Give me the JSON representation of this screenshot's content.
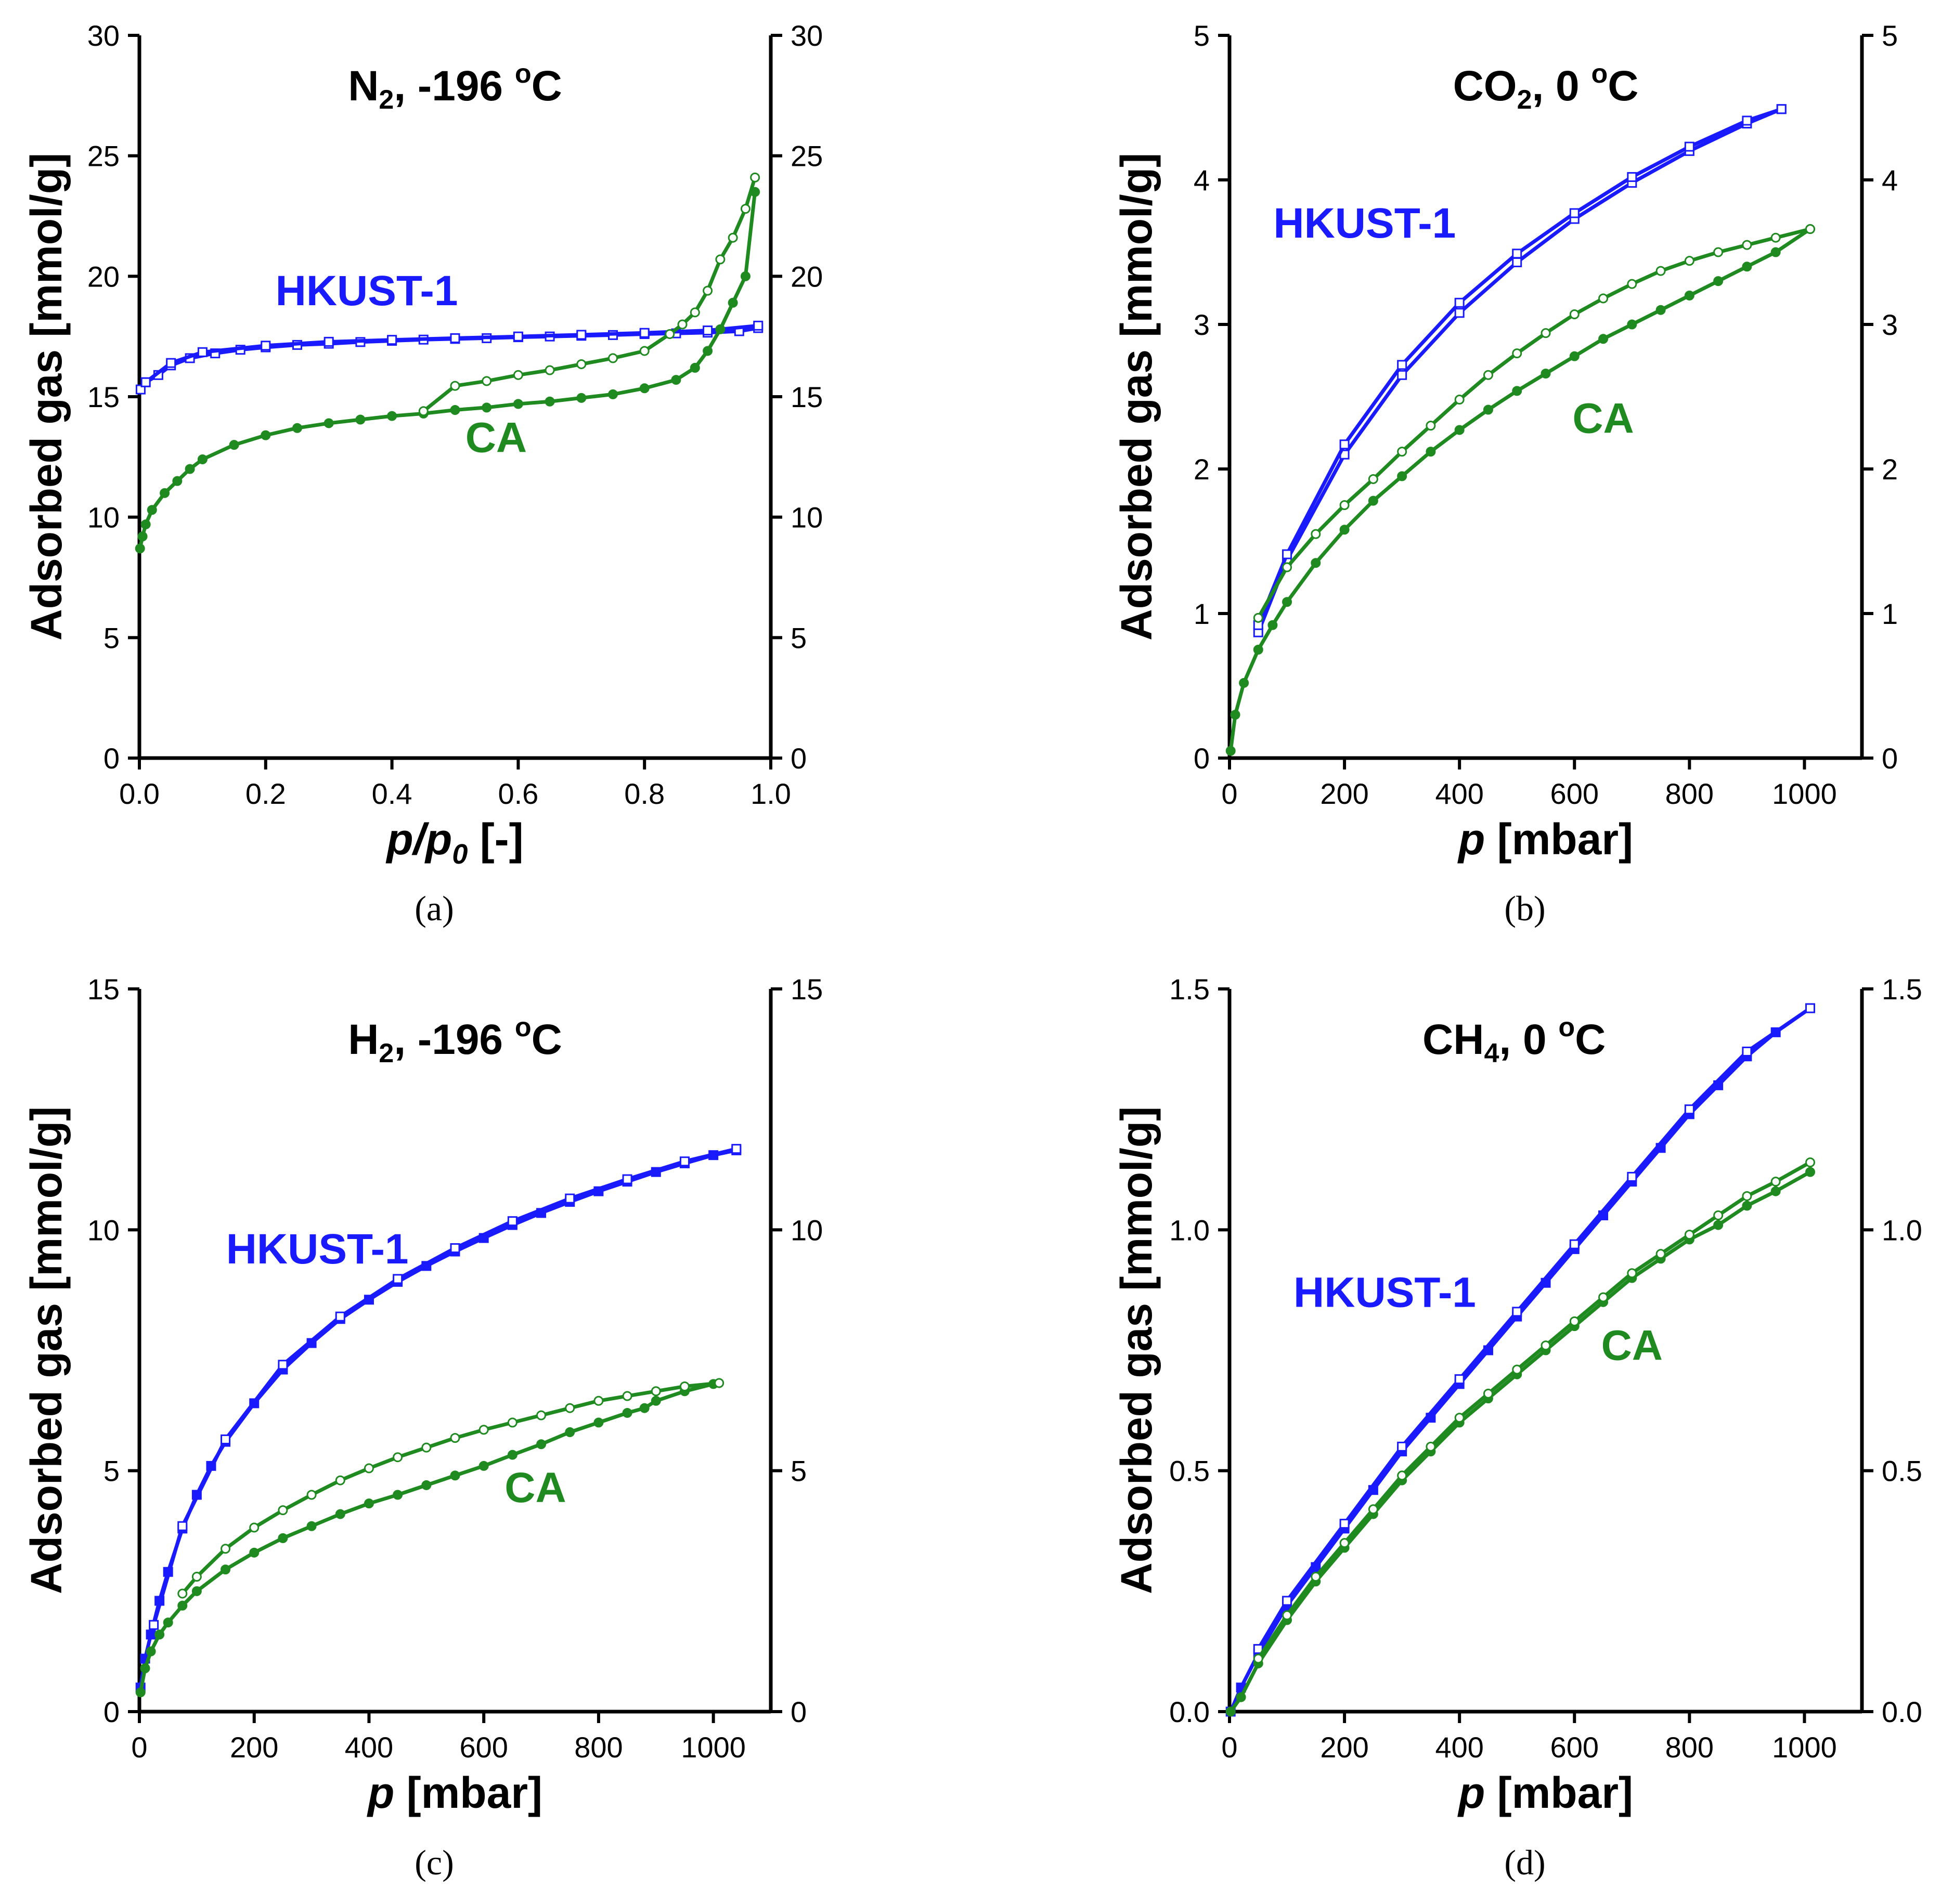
{
  "colors": {
    "hkust": "#1a1aff",
    "ca": "#1f8a1f",
    "axis": "#000000"
  },
  "chart_data": [
    {
      "panel": "a",
      "type": "line",
      "caption": "(a)",
      "title": {
        "main": "N",
        "sub": "2",
        "rest": ", -196 ",
        "sup": "o",
        "end": "C"
      },
      "xlabel": {
        "italic": "p/p",
        "sub": "0",
        "rest": " [-]"
      },
      "ylabel": "Adsorbed gas [mmol/g]",
      "xlim": [
        0,
        1.0
      ],
      "ylim": [
        0,
        30
      ],
      "xticks": [
        "0.0",
        "0.2",
        "0.4",
        "0.6",
        "0.8",
        "1.0"
      ],
      "xtick_values": [
        0,
        0.2,
        0.4,
        0.6,
        0.8,
        1.0
      ],
      "yticks": [
        "0",
        "5",
        "10",
        "15",
        "20",
        "25",
        "30"
      ],
      "ytick_values": [
        0,
        5,
        10,
        15,
        20,
        25,
        30
      ],
      "labels": [
        {
          "text": "HKUST-1",
          "series": "hkust",
          "x": 0.36,
          "y": 18.8
        },
        {
          "text": "CA",
          "series": "ca",
          "x": 0.565,
          "y": 12.7
        }
      ],
      "series": [
        {
          "name": "HKUST-1 adsorption",
          "color_key": "hkust",
          "marker": "square",
          "x": [
            0.002,
            0.01,
            0.03,
            0.05,
            0.08,
            0.12,
            0.16,
            0.2,
            0.25,
            0.3,
            0.35,
            0.4,
            0.45,
            0.5,
            0.55,
            0.6,
            0.65,
            0.7,
            0.75,
            0.8,
            0.85,
            0.9,
            0.95,
            0.98
          ],
          "y": [
            15.3,
            15.6,
            15.9,
            16.3,
            16.6,
            16.8,
            16.95,
            17.05,
            17.15,
            17.2,
            17.27,
            17.32,
            17.37,
            17.4,
            17.43,
            17.47,
            17.5,
            17.53,
            17.56,
            17.6,
            17.63,
            17.66,
            17.72,
            17.85
          ]
        },
        {
          "name": "HKUST-1 desorption",
          "color_key": "hkust",
          "marker": "square",
          "x": [
            0.98,
            0.9,
            0.8,
            0.7,
            0.6,
            0.5,
            0.4,
            0.3,
            0.2,
            0.1,
            0.05,
            0.01
          ],
          "y": [
            17.95,
            17.75,
            17.65,
            17.57,
            17.5,
            17.43,
            17.36,
            17.28,
            17.12,
            16.85,
            16.4,
            15.6
          ]
        },
        {
          "name": "CA adsorption",
          "color_key": "ca",
          "marker": "filled-circle",
          "x": [
            0.001,
            0.005,
            0.01,
            0.02,
            0.04,
            0.06,
            0.08,
            0.1,
            0.15,
            0.2,
            0.25,
            0.3,
            0.35,
            0.4,
            0.45,
            0.5,
            0.55,
            0.6,
            0.65,
            0.7,
            0.75,
            0.8,
            0.85,
            0.88,
            0.9,
            0.92,
            0.94,
            0.96,
            0.975
          ],
          "y": [
            8.7,
            9.2,
            9.7,
            10.3,
            11.0,
            11.5,
            12.0,
            12.4,
            13.0,
            13.4,
            13.7,
            13.9,
            14.05,
            14.2,
            14.3,
            14.45,
            14.55,
            14.7,
            14.8,
            14.95,
            15.1,
            15.35,
            15.7,
            16.2,
            16.9,
            17.8,
            18.9,
            20.0,
            23.5
          ]
        },
        {
          "name": "CA desorption",
          "color_key": "ca",
          "marker": "open-circle",
          "x": [
            0.975,
            0.96,
            0.94,
            0.92,
            0.9,
            0.88,
            0.86,
            0.84,
            0.8,
            0.75,
            0.7,
            0.65,
            0.6,
            0.55,
            0.5,
            0.45
          ],
          "y": [
            24.1,
            22.8,
            21.6,
            20.7,
            19.4,
            18.5,
            18.0,
            17.6,
            16.9,
            16.6,
            16.35,
            16.1,
            15.9,
            15.65,
            15.45,
            14.4
          ]
        }
      ]
    },
    {
      "panel": "b",
      "type": "line",
      "caption": "(b)",
      "title": {
        "main": "CO",
        "sub": "2",
        "rest": ", 0 ",
        "sup": "o",
        "end": "C"
      },
      "xlabel": {
        "italic": "p",
        "sub": "",
        "rest": " [mbar]"
      },
      "ylabel": "Adsorbed gas [mmol/g]",
      "xlim": [
        0,
        1100
      ],
      "ylim": [
        0,
        5
      ],
      "xticks": [
        "0",
        "200",
        "400",
        "600",
        "800",
        "1000"
      ],
      "xtick_values": [
        0,
        200,
        400,
        600,
        800,
        1000
      ],
      "yticks": [
        "0",
        "1",
        "2",
        "3",
        "4",
        "5"
      ],
      "ytick_values": [
        0,
        1,
        2,
        3,
        4,
        5
      ],
      "labels": [
        {
          "text": "HKUST-1",
          "series": "hkust",
          "x": 235,
          "y": 3.6
        },
        {
          "text": "CA",
          "series": "ca",
          "x": 650,
          "y": 2.25
        }
      ],
      "series": [
        {
          "name": "HKUST-1 adsorption",
          "color_key": "hkust",
          "marker": "square",
          "x": [
            50,
            100,
            200,
            300,
            400,
            500,
            600,
            700,
            800,
            900,
            960
          ],
          "y": [
            0.87,
            1.37,
            2.1,
            2.65,
            3.08,
            3.43,
            3.73,
            3.98,
            4.2,
            4.39,
            4.49
          ]
        },
        {
          "name": "HKUST-1 desorption",
          "color_key": "hkust",
          "marker": "square",
          "x": [
            960,
            900,
            800,
            700,
            600,
            500,
            400,
            300,
            200,
            100,
            50
          ],
          "y": [
            4.49,
            4.41,
            4.23,
            4.02,
            3.77,
            3.49,
            3.15,
            2.72,
            2.17,
            1.41,
            0.92
          ]
        },
        {
          "name": "CA adsorption",
          "color_key": "ca",
          "marker": "filled-circle",
          "x": [
            2,
            10,
            25,
            50,
            75,
            100,
            150,
            200,
            250,
            300,
            350,
            400,
            450,
            500,
            550,
            600,
            650,
            700,
            750,
            800,
            850,
            900,
            950,
            1010
          ],
          "y": [
            0.05,
            0.3,
            0.52,
            0.75,
            0.92,
            1.08,
            1.35,
            1.58,
            1.78,
            1.95,
            2.12,
            2.27,
            2.41,
            2.54,
            2.66,
            2.78,
            2.9,
            3.0,
            3.1,
            3.2,
            3.3,
            3.4,
            3.5,
            3.66
          ]
        },
        {
          "name": "CA desorption",
          "color_key": "ca",
          "marker": "open-circle",
          "x": [
            1010,
            950,
            900,
            850,
            800,
            750,
            700,
            650,
            600,
            550,
            500,
            450,
            400,
            350,
            300,
            250,
            200,
            150,
            100,
            50
          ],
          "y": [
            3.66,
            3.6,
            3.55,
            3.5,
            3.44,
            3.37,
            3.28,
            3.18,
            3.07,
            2.94,
            2.8,
            2.65,
            2.48,
            2.3,
            2.12,
            1.93,
            1.75,
            1.55,
            1.32,
            0.97
          ]
        }
      ]
    },
    {
      "panel": "c",
      "type": "line",
      "caption": "(c)",
      "title": {
        "main": "H",
        "sub": "2",
        "rest": ", -196 ",
        "sup": "o",
        "end": "C"
      },
      "xlabel": {
        "italic": "p",
        "sub": "",
        "rest": " [mbar]"
      },
      "ylabel": "Adsorbed gas [mmol/g]",
      "xlim": [
        0,
        1100
      ],
      "ylim": [
        0,
        15
      ],
      "xticks": [
        "0",
        "200",
        "400",
        "600",
        "800",
        "1000"
      ],
      "xtick_values": [
        0,
        200,
        400,
        600,
        800,
        1000
      ],
      "yticks": [
        "0",
        "5",
        "10",
        "15"
      ],
      "ytick_values": [
        0,
        5,
        10,
        15
      ],
      "labels": [
        {
          "text": "HKUST-1",
          "series": "hkust",
          "x": 310,
          "y": 9.3
        },
        {
          "text": "CA",
          "series": "ca",
          "x": 690,
          "y": 4.35
        }
      ],
      "series": [
        {
          "name": "HKUST-1 adsorption",
          "color_key": "hkust",
          "marker": "filled-square",
          "x": [
            2,
            10,
            20,
            35,
            50,
            75,
            100,
            125,
            150,
            200,
            250,
            300,
            350,
            400,
            450,
            500,
            550,
            600,
            650,
            700,
            750,
            800,
            850,
            900,
            950,
            1000,
            1040
          ],
          "y": [
            0.5,
            1.1,
            1.6,
            2.3,
            2.9,
            3.8,
            4.5,
            5.1,
            5.6,
            6.4,
            7.1,
            7.65,
            8.15,
            8.55,
            8.92,
            9.25,
            9.55,
            9.83,
            10.1,
            10.35,
            10.58,
            10.8,
            11.0,
            11.2,
            11.38,
            11.55,
            11.65
          ]
        },
        {
          "name": "HKUST-1 desorption",
          "color_key": "hkust",
          "marker": "open-square",
          "x": [
            1040,
            950,
            850,
            750,
            650,
            550,
            450,
            350,
            250,
            150,
            75,
            25
          ],
          "y": [
            11.68,
            11.42,
            11.05,
            10.65,
            10.18,
            9.62,
            8.98,
            8.2,
            7.2,
            5.65,
            3.85,
            1.8
          ]
        },
        {
          "name": "CA adsorption",
          "color_key": "ca",
          "marker": "filled-circle",
          "x": [
            2,
            10,
            20,
            35,
            50,
            75,
            100,
            150,
            200,
            250,
            300,
            350,
            400,
            450,
            500,
            550,
            600,
            650,
            700,
            750,
            800,
            850,
            880,
            900,
            950,
            1000
          ],
          "y": [
            0.4,
            0.9,
            1.25,
            1.6,
            1.85,
            2.2,
            2.5,
            2.95,
            3.3,
            3.6,
            3.85,
            4.1,
            4.32,
            4.5,
            4.7,
            4.9,
            5.1,
            5.33,
            5.55,
            5.8,
            6.0,
            6.2,
            6.3,
            6.45,
            6.65,
            6.8
          ]
        },
        {
          "name": "CA desorption",
          "color_key": "ca",
          "marker": "open-circle",
          "x": [
            1010,
            950,
            900,
            850,
            800,
            750,
            700,
            650,
            600,
            550,
            500,
            450,
            400,
            350,
            300,
            250,
            200,
            150,
            100,
            75
          ],
          "y": [
            6.82,
            6.75,
            6.65,
            6.55,
            6.45,
            6.3,
            6.15,
            6.0,
            5.85,
            5.68,
            5.48,
            5.28,
            5.05,
            4.8,
            4.5,
            4.18,
            3.82,
            3.38,
            2.8,
            2.45
          ]
        }
      ]
    },
    {
      "panel": "d",
      "type": "line",
      "caption": "(d)",
      "title": {
        "main": "CH",
        "sub": "4",
        "rest": ", 0 ",
        "sup": "o",
        "end": "C"
      },
      "xlabel": {
        "italic": "p",
        "sub": "",
        "rest": " [mbar]"
      },
      "ylabel": "Adsorbed gas [mmol/g]",
      "xlim": [
        0,
        1100
      ],
      "ylim": [
        0,
        1.5
      ],
      "xticks": [
        "0",
        "200",
        "400",
        "600",
        "800",
        "1000"
      ],
      "xtick_values": [
        0,
        200,
        400,
        600,
        800,
        1000
      ],
      "yticks": [
        "0.0",
        "0.5",
        "1.0",
        "1.5"
      ],
      "ytick_values": [
        0,
        0.5,
        1.0,
        1.5
      ],
      "labels": [
        {
          "text": "HKUST-1",
          "series": "hkust",
          "x": 270,
          "y": 0.84
        },
        {
          "text": "CA",
          "series": "ca",
          "x": 700,
          "y": 0.73
        }
      ],
      "series": [
        {
          "name": "HKUST-1 adsorption",
          "color_key": "hkust",
          "marker": "filled-square",
          "x": [
            2,
            20,
            50,
            100,
            150,
            200,
            250,
            300,
            350,
            400,
            450,
            500,
            550,
            600,
            650,
            700,
            750,
            800,
            850,
            900,
            950,
            1010
          ],
          "y": [
            0.0,
            0.05,
            0.12,
            0.22,
            0.3,
            0.38,
            0.46,
            0.54,
            0.61,
            0.68,
            0.75,
            0.82,
            0.89,
            0.96,
            1.03,
            1.1,
            1.17,
            1.24,
            1.3,
            1.36,
            1.41,
            1.46
          ]
        },
        {
          "name": "HKUST-1 desorption",
          "color_key": "hkust",
          "marker": "open-square",
          "x": [
            1010,
            900,
            800,
            700,
            600,
            500,
            400,
            300,
            200,
            100,
            50
          ],
          "y": [
            1.46,
            1.37,
            1.25,
            1.11,
            0.97,
            0.83,
            0.69,
            0.55,
            0.39,
            0.23,
            0.13
          ]
        },
        {
          "name": "CA adsorption",
          "color_key": "ca",
          "marker": "filled-circle",
          "x": [
            2,
            20,
            50,
            100,
            150,
            200,
            250,
            300,
            350,
            400,
            450,
            500,
            550,
            600,
            650,
            700,
            750,
            800,
            850,
            900,
            950,
            1010
          ],
          "y": [
            0.0,
            0.03,
            0.1,
            0.19,
            0.27,
            0.34,
            0.41,
            0.48,
            0.54,
            0.6,
            0.65,
            0.7,
            0.75,
            0.8,
            0.85,
            0.9,
            0.94,
            0.98,
            1.01,
            1.05,
            1.08,
            1.12
          ]
        },
        {
          "name": "CA desorption",
          "color_key": "ca",
          "marker": "open-circle",
          "x": [
            1010,
            950,
            900,
            850,
            800,
            750,
            700,
            650,
            600,
            550,
            500,
            450,
            400,
            350,
            300,
            250,
            200,
            150,
            100,
            50
          ],
          "y": [
            1.14,
            1.1,
            1.07,
            1.03,
            0.99,
            0.95,
            0.91,
            0.86,
            0.81,
            0.76,
            0.71,
            0.66,
            0.61,
            0.55,
            0.49,
            0.42,
            0.35,
            0.28,
            0.2,
            0.11
          ]
        }
      ]
    }
  ]
}
